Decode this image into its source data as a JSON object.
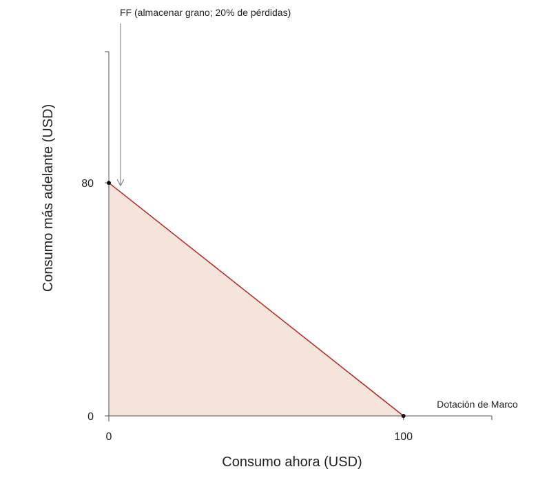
{
  "chart_data": {
    "type": "area",
    "title": "",
    "xlabel": "Consumo ahora (USD)",
    "ylabel": "Consumo más adelante (USD)",
    "xlim": [
      0,
      130
    ],
    "ylim": [
      0,
      125
    ],
    "x_ticks": [
      {
        "value": 0,
        "label": "0"
      },
      {
        "value": 100,
        "label": "100"
      }
    ],
    "y_ticks": [
      {
        "value": 0,
        "label": "0"
      },
      {
        "value": 80,
        "label": "80"
      }
    ],
    "grid": false,
    "series": [
      {
        "name": "FF",
        "points": [
          {
            "x": 0,
            "y": 80
          },
          {
            "x": 100,
            "y": 0
          }
        ]
      }
    ],
    "feasible_region": [
      {
        "x": 0,
        "y": 0
      },
      {
        "x": 0,
        "y": 80
      },
      {
        "x": 100,
        "y": 0
      }
    ],
    "key_points": [
      {
        "name": "ff-intercept",
        "x": 0,
        "y": 80
      },
      {
        "name": "dotacion-de-marco",
        "x": 100,
        "y": 0
      }
    ],
    "annotations": [
      {
        "name": "ff-annotation",
        "text": "FF (almacenar grano; 20% de pérdidas)",
        "target": {
          "x": 0,
          "y": 80
        }
      },
      {
        "name": "endowment-annotation",
        "text": "Dotación de Marco",
        "target": {
          "x": 100,
          "y": 0
        }
      }
    ],
    "colors": {
      "line": "#b3261e",
      "fill": "#f5e4da",
      "axis": "#555555",
      "point": "#111111",
      "arrow": "#8a8a8a"
    }
  }
}
